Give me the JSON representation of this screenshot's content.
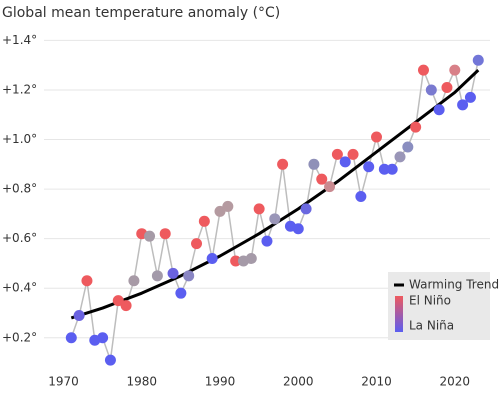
{
  "chart_data": {
    "type": "scatter",
    "title": "Global mean temperature anomaly (°C)",
    "xlim": [
      1967,
      2024.5
    ],
    "ylim": [
      0.07,
      1.45
    ],
    "xticks": [
      1970,
      1980,
      1990,
      2000,
      2010,
      2020
    ],
    "yticks": [
      {
        "value": 0.2,
        "label": "+0.2°"
      },
      {
        "value": 0.4,
        "label": "+0.4°"
      },
      {
        "value": 0.6,
        "label": "+0.6°"
      },
      {
        "value": 0.8,
        "label": "+0.8°"
      },
      {
        "value": 1.0,
        "label": "+1.0°"
      },
      {
        "value": 1.2,
        "label": "+1.2°"
      },
      {
        "value": 1.4,
        "label": "+1.4°"
      }
    ],
    "grid": true,
    "legend_position": "lower right",
    "series": [
      {
        "line_color": "#bdbdbd",
        "x": [
          1971,
          1972,
          1973,
          1974,
          1975,
          1976,
          1977,
          1978,
          1979,
          1980,
          1981,
          1982,
          1983,
          1984,
          1985,
          1986,
          1987,
          1988,
          1989,
          1990,
          1991,
          1992,
          1993,
          1994,
          1995,
          1996,
          1997,
          1998,
          1999,
          2000,
          2001,
          2002,
          2003,
          2004,
          2005,
          2006,
          2007,
          2008,
          2009,
          2010,
          2011,
          2012,
          2013,
          2014,
          2015,
          2016,
          2017,
          2018,
          2019,
          2020,
          2021,
          2022,
          2023
        ],
        "values": [
          0.2,
          0.29,
          0.43,
          0.19,
          0.2,
          0.11,
          0.35,
          0.33,
          0.43,
          0.62,
          0.61,
          0.45,
          0.62,
          0.46,
          0.38,
          0.45,
          0.58,
          0.67,
          0.52,
          0.71,
          0.73,
          0.51,
          0.51,
          0.52,
          0.72,
          0.59,
          0.68,
          0.9,
          0.65,
          0.64,
          0.72,
          0.9,
          0.84,
          0.81,
          0.94,
          0.91,
          0.94,
          0.77,
          0.89,
          1.01,
          0.88,
          0.88,
          0.93,
          0.97,
          1.05,
          1.28,
          1.2,
          1.12,
          1.21,
          1.28,
          1.14,
          1.17,
          1.32
        ],
        "colors": [
          "#5b5ef0",
          "#6a62e0",
          "#ee5a5e",
          "#5b5ef0",
          "#5b5ef0",
          "#5b5ef0",
          "#ee5a5e",
          "#ee5a5e",
          "#a79aa6",
          "#ee5a5e",
          "#a59aa6",
          "#a39aaa",
          "#ee5a5e",
          "#6a62e0",
          "#5b5ef0",
          "#8a86c4",
          "#ee5a5e",
          "#ee5a5e",
          "#5b5ef0",
          "#b49aa0",
          "#b59aa0",
          "#ee5a5e",
          "#a59aa8",
          "#a59aa8",
          "#ee5a5e",
          "#5b5ef0",
          "#9a96b8",
          "#ee5a5e",
          "#5b5ef0",
          "#5b5ef0",
          "#6a68e0",
          "#8f90b8",
          "#ee5a5e",
          "#c98a90",
          "#ee5a5e",
          "#5b5ef0",
          "#ee5a5e",
          "#5b5ef0",
          "#5b5ef0",
          "#ee5a5e",
          "#5b5ef0",
          "#5b5ef0",
          "#9a96b8",
          "#8a8ec0",
          "#ee5a5e",
          "#ee5a5e",
          "#7a7ad0",
          "#5b5ef0",
          "#ee5a5e",
          "#d88088",
          "#5b5ef0",
          "#5b5ef0",
          "#7276d8"
        ]
      },
      {
        "name": "Warming Trend",
        "color": "#000000",
        "x": [
          1971,
          1975,
          1980,
          1985,
          1990,
          1995,
          2000,
          2005,
          2010,
          2015,
          2020,
          2023
        ],
        "values": [
          0.28,
          0.32,
          0.38,
          0.45,
          0.53,
          0.62,
          0.72,
          0.83,
          0.95,
          1.07,
          1.19,
          1.28
        ]
      }
    ],
    "color_legend": {
      "high_label": "El Niño",
      "low_label": "La Niña",
      "high_color": "#ee5a5e",
      "low_color": "#5b5ef0"
    }
  }
}
